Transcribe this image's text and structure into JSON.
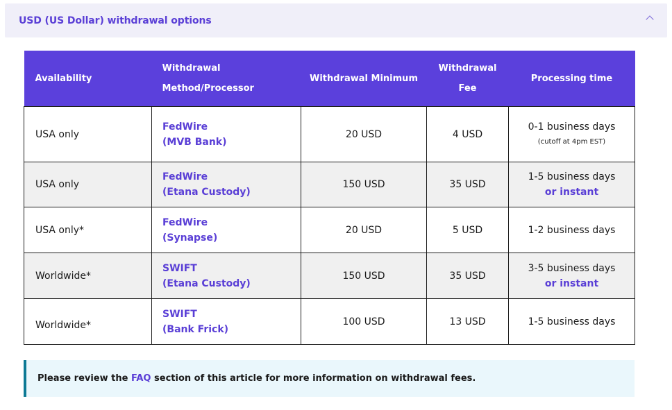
{
  "accordion": {
    "title": "USD (US Dollar) withdrawal options",
    "icon": "chevron-up-icon"
  },
  "table": {
    "headers": {
      "availability": "Availability",
      "method_line1": "Withdrawal",
      "method_line2": "Method/Processor",
      "minimum": "Withdrawal Minimum",
      "fee_line1": "Withdrawal",
      "fee_line2": "Fee",
      "processing": "Processing time"
    },
    "rows": [
      {
        "availability": "USA only",
        "method": "FedWire",
        "processor": "(MVB Bank)",
        "minimum": "20 USD",
        "fee": "4 USD",
        "time": "0-1 business days",
        "time_extra": "(cutoff at 4pm EST)"
      },
      {
        "availability": "USA only",
        "method": "FedWire",
        "processor": "(Etana Custody)",
        "minimum": "150 USD",
        "fee": "35 USD",
        "time": "1-5 business days",
        "time_extra": "or instant"
      },
      {
        "availability": "USA only*",
        "method": "FedWire",
        "processor": "(Synapse)",
        "minimum": "20 USD",
        "fee": "5 USD",
        "time": "1-2 business days"
      },
      {
        "availability": "Worldwide*",
        "method": "SWIFT",
        "processor": "(Etana Custody)",
        "minimum": "150 USD",
        "fee": "35 USD",
        "time": "3-5 business days",
        "time_extra": "or instant"
      },
      {
        "availability": "Worldwide*",
        "method": "SWIFT",
        "processor": "(Bank Frick)",
        "minimum": "100 USD",
        "fee": "13 USD",
        "time": "1-5 business days"
      }
    ]
  },
  "info": {
    "prefix": "Please review the ",
    "link": "FAQ",
    "suffix": " section of this article for more information on withdrawal fees."
  },
  "colors": {
    "header_bg": "#5b40dc",
    "link": "#5a3fd6",
    "info_bg": "#eaf7fc",
    "info_border": "#0d7a95"
  }
}
